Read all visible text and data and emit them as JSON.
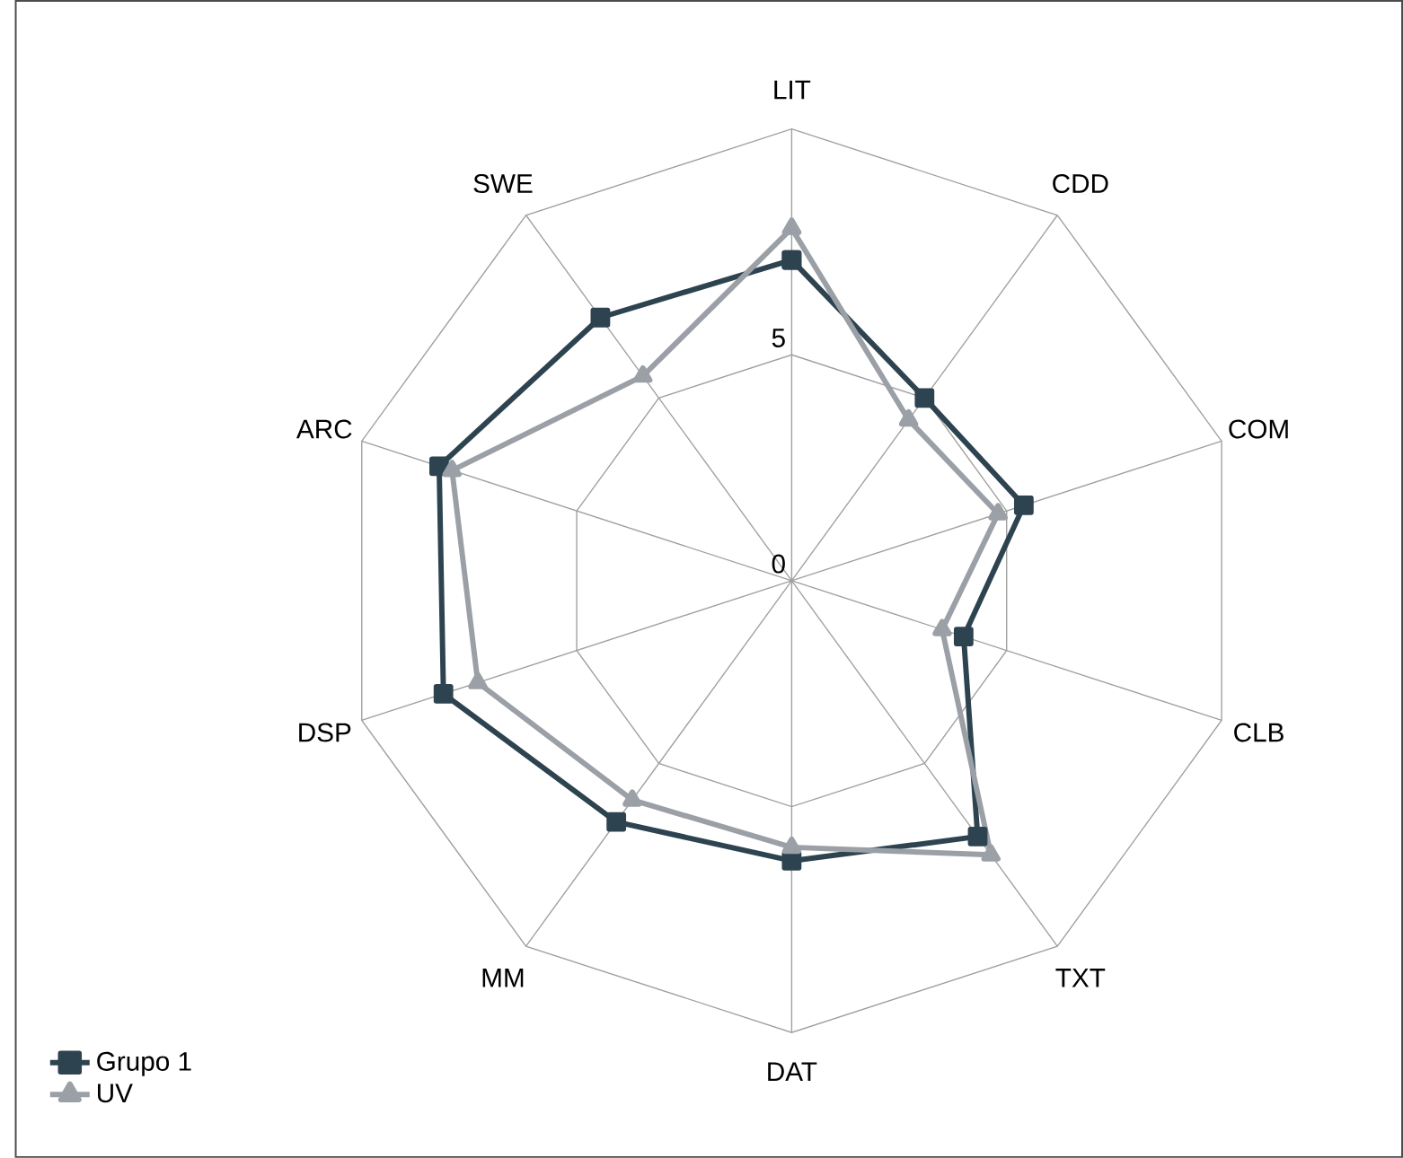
{
  "chart_data": {
    "type": "radar",
    "categories": [
      "LIT",
      "CDD",
      "COM",
      "CLB",
      "TXT",
      "DAT",
      "MM",
      "DSP",
      "ARC",
      "SWE"
    ],
    "series": [
      {
        "name": "Grupo 1",
        "color": "#2e4350",
        "marker": "square",
        "values": [
          7.1,
          5.0,
          5.4,
          4.0,
          7.0,
          6.2,
          6.6,
          8.1,
          8.2,
          7.2
        ]
      },
      {
        "name": "UV",
        "color": "#9aa0a6",
        "marker": "triangle",
        "values": [
          7.8,
          4.4,
          4.8,
          3.5,
          7.5,
          5.9,
          6.0,
          7.3,
          7.9,
          5.6
        ]
      }
    ],
    "ylim": [
      0,
      10
    ],
    "yticks": [
      0,
      5
    ],
    "grid": true,
    "legend": "bottom left"
  }
}
